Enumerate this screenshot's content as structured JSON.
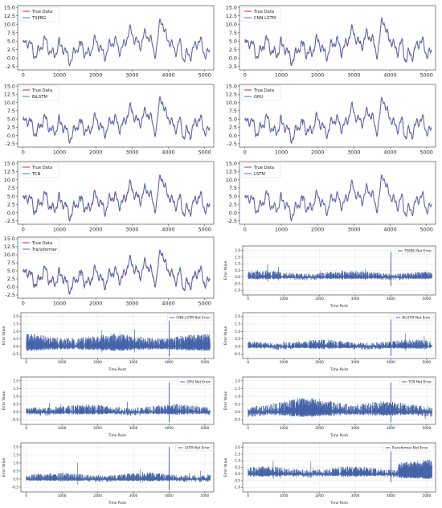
{
  "colors": {
    "true_data": "#d62728",
    "prediction": "#4a6fbf",
    "error_fill": "#4563a8",
    "grid": "#e6e6e6",
    "axis": "#333333"
  },
  "chart_data": [
    {
      "type": "line",
      "panel": "prediction",
      "model": "TSEBG",
      "x_ticks": [
        0,
        1000,
        2000,
        3000,
        4000,
        5000
      ],
      "y_ticks": [
        -2.5,
        0.0,
        2.5,
        5.0,
        7.5,
        10.0,
        12.5,
        15.0
      ],
      "ylim": [
        -3.5,
        15.5
      ],
      "xlim": [
        -150,
        5250
      ],
      "grid": false,
      "legend": "top-left",
      "series": [
        {
          "name": "True Data"
        },
        {
          "name": "TSEBG"
        }
      ]
    },
    {
      "type": "line",
      "panel": "prediction",
      "model": "CNN-LSTM",
      "x_ticks": [
        0,
        1000,
        2000,
        3000,
        4000,
        5000
      ],
      "y_ticks": [
        -2.5,
        0.0,
        2.5,
        5.0,
        7.5,
        10.0,
        12.5,
        15.0
      ],
      "ylim": [
        -3.5,
        15.5
      ],
      "xlim": [
        -150,
        5250
      ],
      "grid": false,
      "legend": "top-left",
      "series": [
        {
          "name": "True Data"
        },
        {
          "name": "CNN-LSTM"
        }
      ]
    },
    {
      "type": "line",
      "panel": "prediction",
      "model": "BiLSTM",
      "x_ticks": [
        0,
        1000,
        2000,
        3000,
        4000,
        5000
      ],
      "y_ticks": [
        -2.5,
        0.0,
        2.5,
        5.0,
        7.5,
        10.0,
        12.5,
        15.0
      ],
      "ylim": [
        -3.5,
        15.5
      ],
      "xlim": [
        -150,
        5250
      ],
      "grid": false,
      "legend": "top-left",
      "series": [
        {
          "name": "True Data"
        },
        {
          "name": "BiLSTM"
        }
      ]
    },
    {
      "type": "line",
      "panel": "prediction",
      "model": "GRU",
      "x_ticks": [
        0,
        1000,
        2000,
        3000,
        4000,
        5000
      ],
      "y_ticks": [
        -2.5,
        0.0,
        2.5,
        5.0,
        7.5,
        10.0,
        12.5,
        15.0
      ],
      "ylim": [
        -3.5,
        15.5
      ],
      "xlim": [
        -150,
        5250
      ],
      "grid": false,
      "legend": "top-left",
      "series": [
        {
          "name": "True Data"
        },
        {
          "name": "GRU"
        }
      ]
    },
    {
      "type": "line",
      "panel": "prediction",
      "model": "TCN",
      "x_ticks": [
        0,
        1000,
        2000,
        3000,
        4000,
        5000
      ],
      "y_ticks": [
        -2.5,
        0.0,
        2.5,
        5.0,
        7.5,
        10.0,
        12.5,
        15.0
      ],
      "ylim": [
        -3.5,
        15.5
      ],
      "xlim": [
        -150,
        5250
      ],
      "grid": false,
      "legend": "top-left",
      "series": [
        {
          "name": "True Data"
        },
        {
          "name": "TCN"
        }
      ]
    },
    {
      "type": "line",
      "panel": "prediction",
      "model": "LSTM",
      "x_ticks": [
        0,
        1000,
        2000,
        3000,
        4000,
        5000
      ],
      "y_ticks": [
        -2.5,
        0.0,
        2.5,
        5.0,
        7.5,
        10.0,
        12.5,
        15.0
      ],
      "ylim": [
        -3.5,
        15.5
      ],
      "xlim": [
        -150,
        5250
      ],
      "grid": false,
      "legend": "top-left",
      "series": [
        {
          "name": "True Data"
        },
        {
          "name": "LSTM"
        }
      ]
    },
    {
      "type": "line",
      "panel": "prediction",
      "model": "Transformer",
      "x_ticks": [
        0,
        1000,
        2000,
        3000,
        4000,
        5000
      ],
      "y_ticks": [
        -2.5,
        0.0,
        2.5,
        5.0,
        7.5,
        10.0,
        12.5,
        15.0
      ],
      "ylim": [
        -3.5,
        15.5
      ],
      "xlim": [
        -150,
        5250
      ],
      "grid": false,
      "legend": "top-left",
      "series": [
        {
          "name": "True Data"
        },
        {
          "name": "Transformer"
        }
      ]
    },
    {
      "type": "area",
      "panel": "error",
      "model": "TSEBG",
      "xlabel": "Time Point",
      "ylabel": "Error Value",
      "x_ticks": [
        0,
        1000,
        2000,
        3000,
        4000,
        5000
      ],
      "y_ticks": [
        -1.0,
        -0.5,
        0.0,
        0.5,
        1.0,
        1.5,
        2.0
      ],
      "ylim": [
        -1.35,
        2.35
      ],
      "xlim": [
        -150,
        5250
      ],
      "grid": true,
      "legend": "top-right",
      "series": [
        {
          "name": "TSEBG Net Error"
        }
      ]
    },
    {
      "type": "area",
      "panel": "error",
      "model": "CNN-LSTM",
      "xlabel": "Time Point",
      "ylabel": "Error Value",
      "x_ticks": [
        0,
        1000,
        2000,
        3000,
        4000,
        5000
      ],
      "y_ticks": [
        -0.5,
        0.0,
        0.5,
        1.0,
        1.5,
        2.0
      ],
      "ylim": [
        -0.8,
        2.25
      ],
      "xlim": [
        -150,
        5250
      ],
      "grid": true,
      "legend": "top-right",
      "series": [
        {
          "name": "CNN-LSTM Net Error"
        }
      ]
    },
    {
      "type": "area",
      "panel": "error",
      "model": "BiLSTM",
      "xlabel": "Time Point",
      "ylabel": "Error Value",
      "x_ticks": [
        0,
        1000,
        2000,
        3000,
        4000,
        5000
      ],
      "y_ticks": [
        -0.5,
        0.0,
        0.5,
        1.0,
        1.5,
        2.0
      ],
      "ylim": [
        -0.8,
        2.25
      ],
      "xlim": [
        -150,
        5250
      ],
      "grid": true,
      "legend": "top-right",
      "series": [
        {
          "name": "BiLSTM Net Error"
        }
      ]
    },
    {
      "type": "area",
      "panel": "error",
      "model": "GRU",
      "xlabel": "Time Point",
      "ylabel": "Error Value",
      "x_ticks": [
        0,
        1000,
        2000,
        3000,
        4000,
        5000
      ],
      "y_ticks": [
        -0.5,
        0.0,
        0.5,
        1.0,
        1.5,
        2.0
      ],
      "ylim": [
        -0.8,
        2.25
      ],
      "xlim": [
        -150,
        5250
      ],
      "grid": true,
      "legend": "top-right",
      "series": [
        {
          "name": "GRU Net Error"
        }
      ]
    },
    {
      "type": "area",
      "panel": "error",
      "model": "TCN",
      "xlabel": "Time Point",
      "ylabel": "Error Value",
      "x_ticks": [
        0,
        1000,
        2000,
        3000,
        4000,
        5000
      ],
      "y_ticks": [
        -0.5,
        0.0,
        0.5,
        1.0,
        1.5,
        2.0
      ],
      "ylim": [
        -0.8,
        2.25
      ],
      "xlim": [
        -150,
        5250
      ],
      "grid": true,
      "legend": "top-right",
      "series": [
        {
          "name": "TCN Net Error"
        }
      ]
    },
    {
      "type": "area",
      "panel": "error",
      "model": "LSTM",
      "xlabel": "Time Point",
      "ylabel": "Error Value",
      "x_ticks": [
        0,
        1000,
        2000,
        3000,
        4000,
        5000
      ],
      "y_ticks": [
        -0.5,
        0.0,
        0.5,
        1.0,
        1.5,
        2.0
      ],
      "ylim": [
        -0.8,
        2.25
      ],
      "xlim": [
        -150,
        5250
      ],
      "grid": true,
      "legend": "top-right",
      "series": [
        {
          "name": "LSTM Net Error"
        }
      ]
    },
    {
      "type": "area",
      "panel": "error",
      "model": "Transformer",
      "xlabel": "Time Point",
      "ylabel": "Error Value",
      "x_ticks": [
        0,
        1000,
        2000,
        3000,
        4000,
        5000
      ],
      "y_ticks": [
        -1.0,
        -0.5,
        0.0,
        0.5,
        1.0,
        1.5,
        2.0
      ],
      "ylim": [
        -1.35,
        2.35
      ],
      "xlim": [
        -150,
        5250
      ],
      "grid": true,
      "legend": "top-right",
      "series": [
        {
          "name": "Transformer Net Error"
        }
      ]
    }
  ]
}
